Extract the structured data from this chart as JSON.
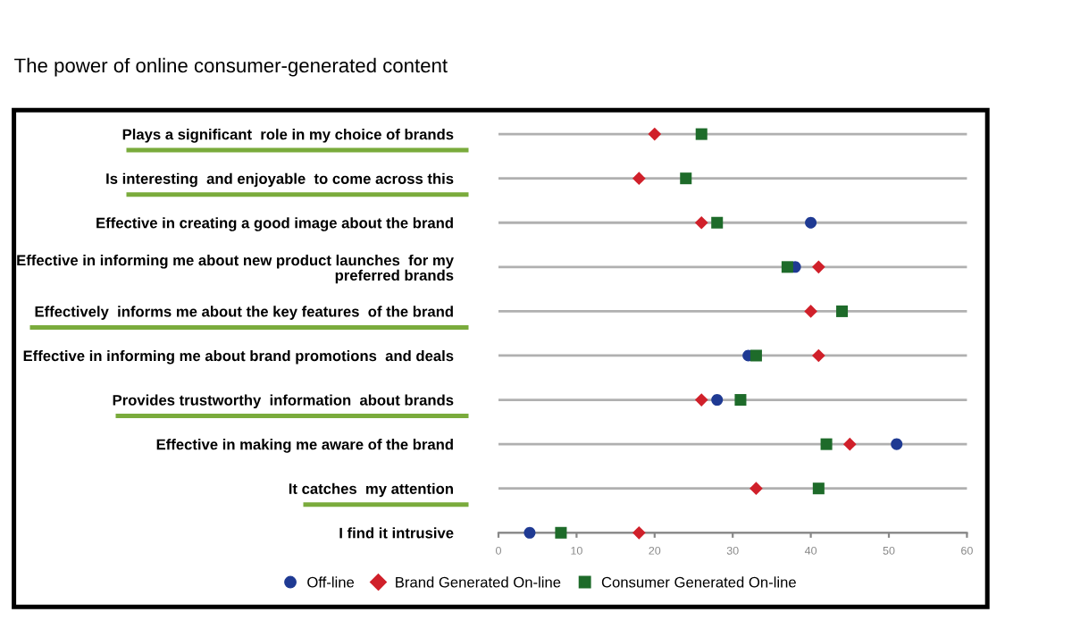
{
  "chart_data": {
    "type": "scatter",
    "title": "The power of online consumer-generated content",
    "categories": [
      "Plays a significant  role in my choice of brands",
      "Is interesting  and enjoyable  to come across this",
      "Effective in creating a good image about the brand",
      "Effective in informing me about new product launches  for my\npreferred brands",
      "Effectively  informs me about the key features  of the brand",
      "Effective in informing me about brand promotions  and deals",
      "Provides trustworthy  information  about brands",
      "Effective in making me aware of the brand",
      "It catches  my attention",
      "I find it intrusive"
    ],
    "series": [
      {
        "name": "Off-line",
        "color": "#1f3a93",
        "marker": "circle",
        "values": [
          null,
          null,
          40,
          38,
          null,
          32,
          28,
          51,
          null,
          4
        ]
      },
      {
        "name": "Brand Generated On-line",
        "color": "#d0202a",
        "marker": "diamond",
        "values": [
          20,
          18,
          26,
          41,
          40,
          41,
          26,
          45,
          33,
          18
        ]
      },
      {
        "name": "Consumer Generated On-line",
        "color": "#1e6b2a",
        "marker": "square",
        "values": [
          26,
          24,
          28,
          37,
          44,
          33,
          31,
          42,
          41,
          8
        ]
      }
    ],
    "orientation": "horizontal",
    "xlim": [
      0,
      60
    ],
    "xticks": [
      0,
      10,
      20,
      30,
      40,
      50,
      60
    ],
    "grid": "y",
    "legend": "bottom"
  }
}
